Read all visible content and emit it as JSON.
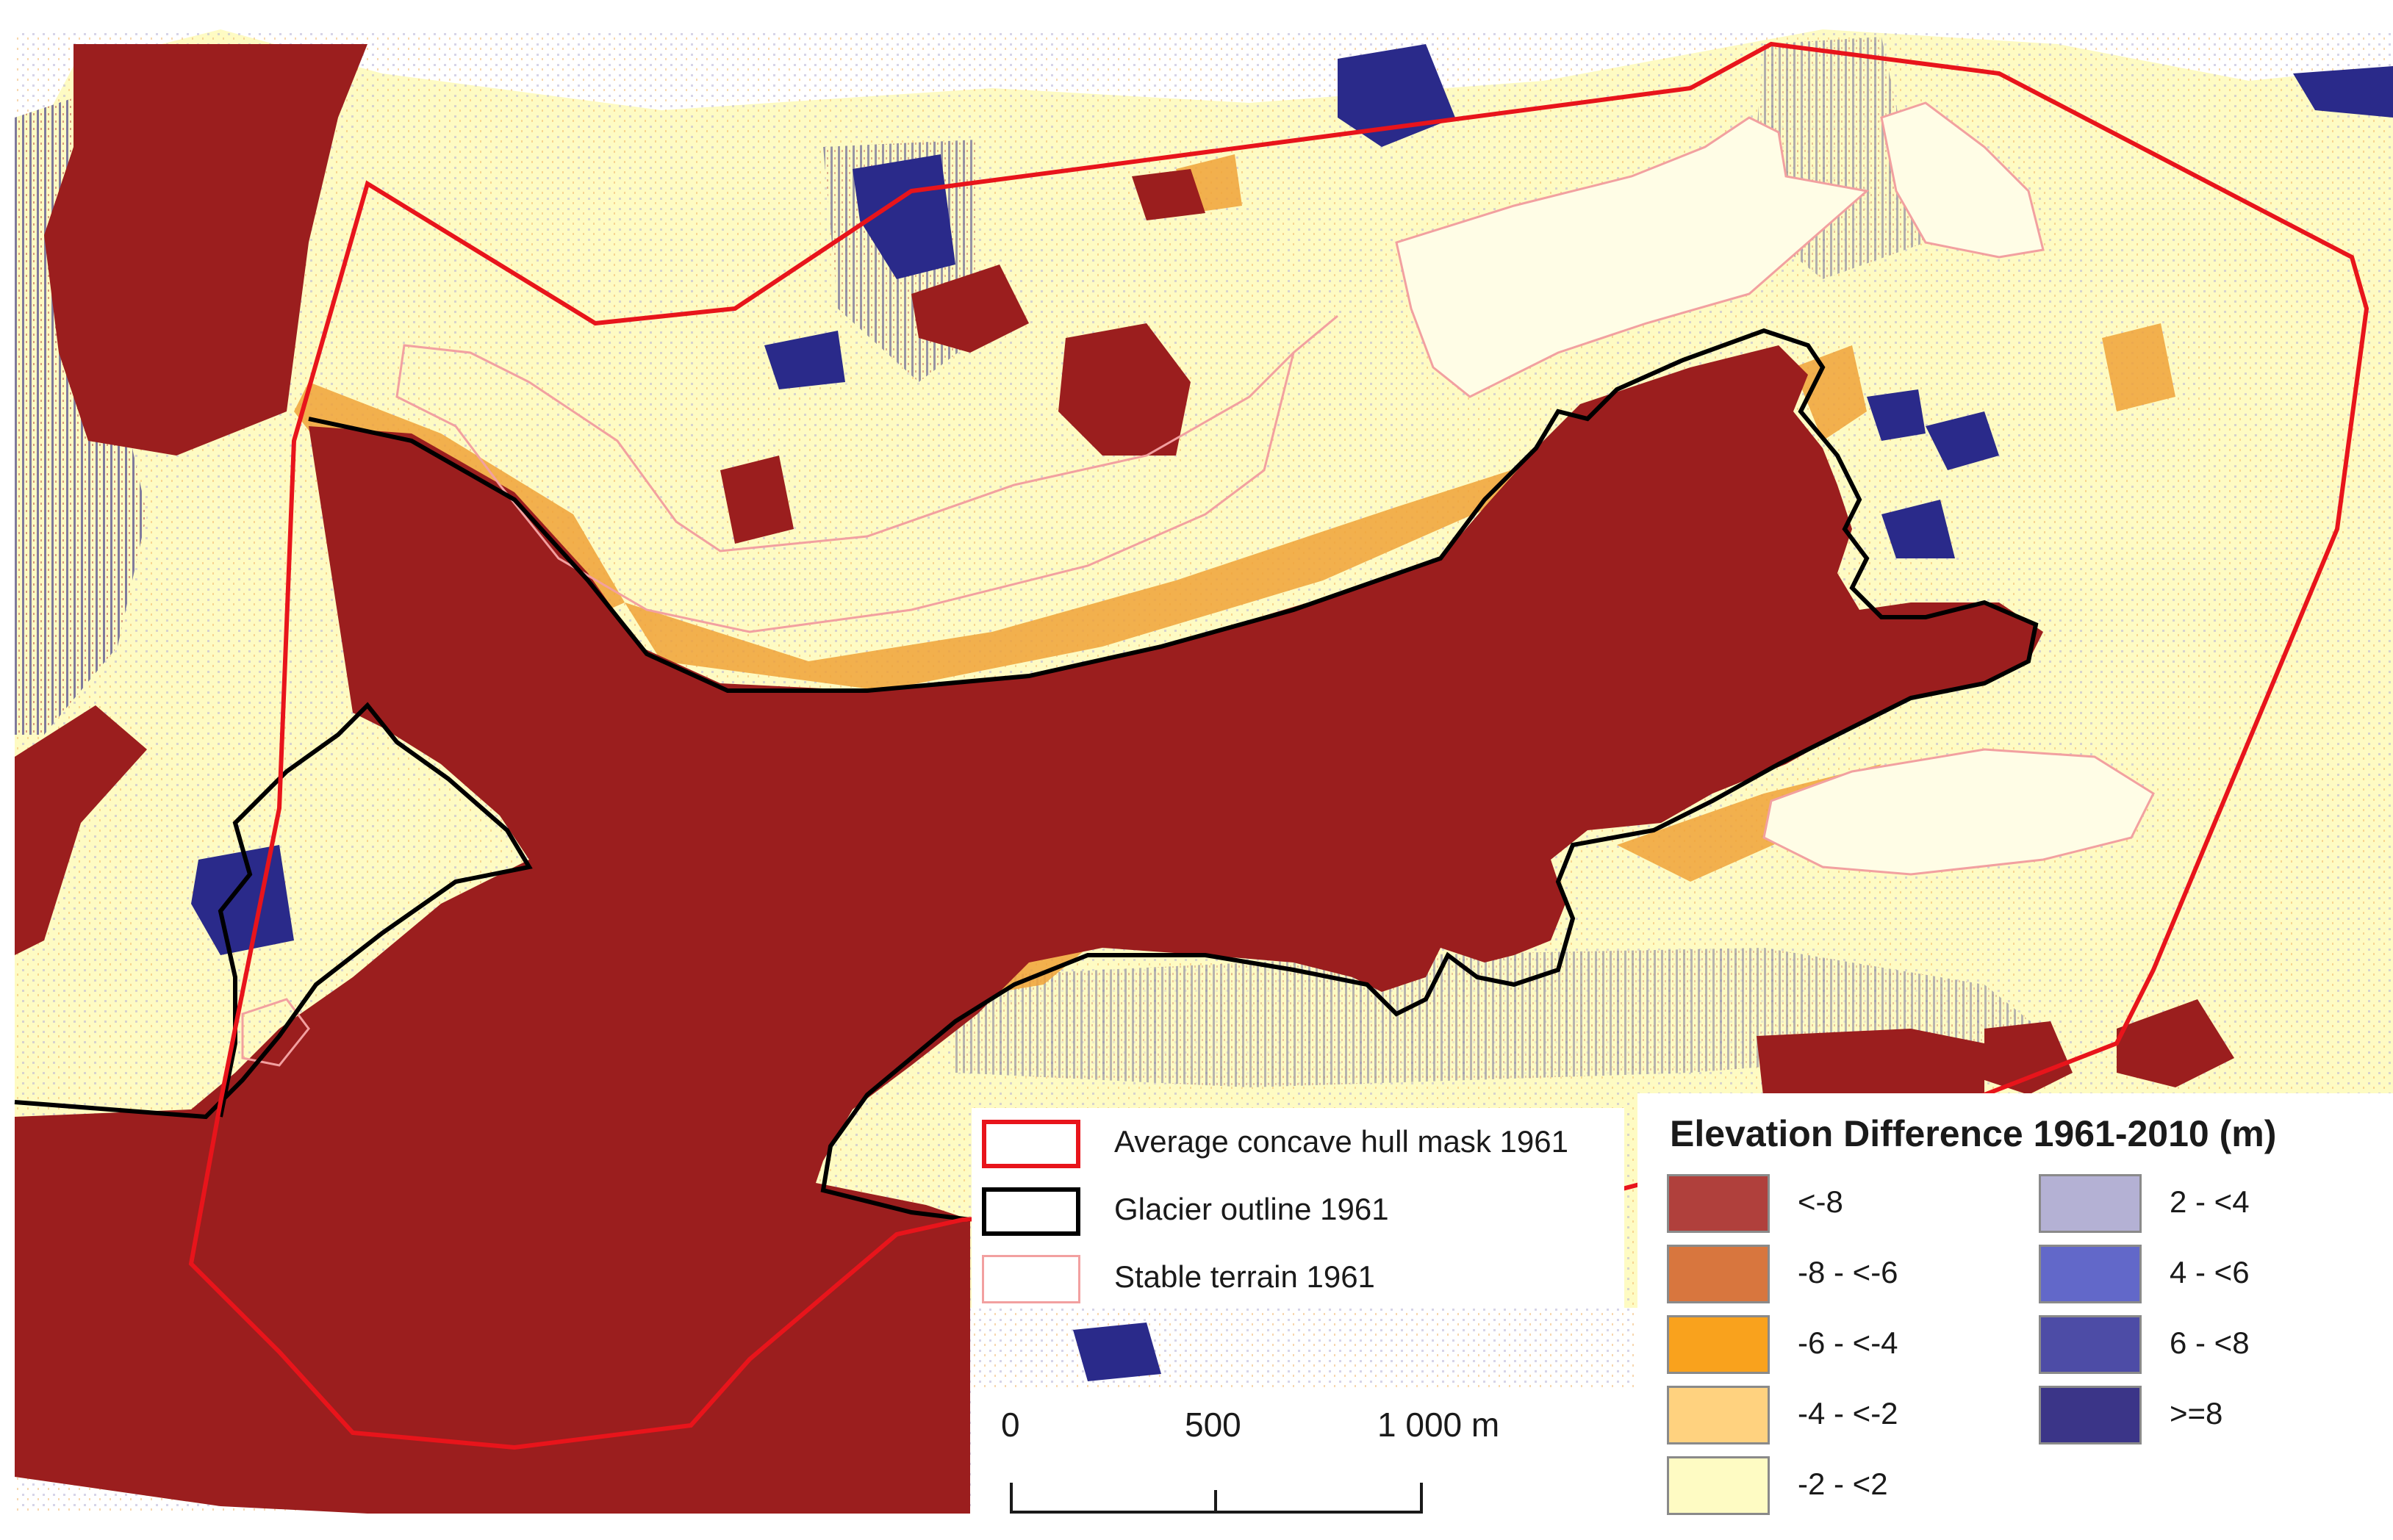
{
  "legend_lines": {
    "items": [
      {
        "label": "Average concave hull mask 1961",
        "stroke": "#e8141b",
        "stroke_width": 6
      },
      {
        "label": "Glacier outline 1961",
        "stroke": "#000000",
        "stroke_width": 6
      },
      {
        "label": "Stable terrain 1961",
        "stroke": "#f2a0a0",
        "stroke_width": 3
      }
    ]
  },
  "legend_elev": {
    "title": "Elevation Difference 1961-2010 (m)",
    "classes": [
      {
        "label": "<-8",
        "color": "#b0403c"
      },
      {
        "label": "-8 - <-6",
        "color": "#d8763e"
      },
      {
        "label": "-6 - <-4",
        "color": "#f9a21d"
      },
      {
        "label": "-4 - <-2",
        "color": "#ffd27f"
      },
      {
        "label": "-2 - <2",
        "color": "#fefbc3"
      },
      {
        "label": "2 - <4",
        "color": "#b4b1d4"
      },
      {
        "label": "4 - <6",
        "color": "#6268c9"
      },
      {
        "label": "6 - <8",
        "color": "#4d4ca6"
      },
      {
        "label": ">=8",
        "color": "#3b3588"
      }
    ]
  },
  "scale_bar": {
    "labels": [
      "0",
      "500",
      "1 000 m"
    ]
  },
  "map_colors": {
    "background_terrain": "#fefbc3",
    "glacier_loss": "#9b1e1e",
    "thinning_orange": "#f0a238",
    "gain_blue": "#2a2a8a"
  }
}
